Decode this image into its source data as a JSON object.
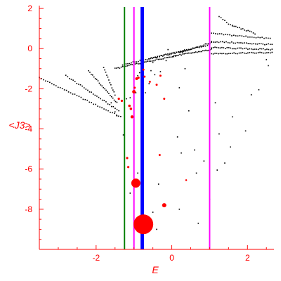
{
  "colors": {
    "axis": "#ff0000",
    "points": "#000000",
    "highlight": "#ff0000",
    "vline_green": "#008000",
    "vline_magenta": "#ff00ff",
    "vline_blue": "#0000ff"
  },
  "chart_data": {
    "type": "scatter",
    "xlabel": "E",
    "ylabel": "<J3>",
    "xlim": [
      -3.5,
      2.7
    ],
    "ylim": [
      -10,
      2
    ],
    "xticks": [
      -2,
      0,
      2
    ],
    "yticks": [
      2,
      0,
      -2,
      -4,
      -6,
      -8
    ],
    "grid": false,
    "vertical_lines": [
      {
        "x": -1.25,
        "color": "#008000",
        "width": 2
      },
      {
        "x": -1.0,
        "color": "#ff00ff",
        "width": 2
      },
      {
        "x": -0.78,
        "color": "#0000ff",
        "width": 5
      },
      {
        "x": 1.0,
        "color": "#ff00ff",
        "width": 2
      }
    ],
    "bands": [
      {
        "x0": -3.5,
        "y0": -1.45,
        "x1": -1.35,
        "y1": -3.4,
        "n": 40
      },
      {
        "x0": -2.8,
        "y0": -1.35,
        "x1": -1.4,
        "y1": -3.1,
        "n": 30
      },
      {
        "x0": -2.2,
        "y0": -1.1,
        "x1": -1.45,
        "y1": -2.7,
        "n": 22
      },
      {
        "x0": -1.8,
        "y0": -0.95,
        "x1": -1.5,
        "y1": -2.3,
        "n": 12
      },
      {
        "x0": -1.5,
        "y0": -1.0,
        "x1": 0.1,
        "y1": -0.35,
        "n": 40
      },
      {
        "x0": -1.3,
        "y0": -0.8,
        "x1": 0.5,
        "y1": -0.05,
        "n": 40
      },
      {
        "x0": -0.6,
        "y0": -0.5,
        "x1": 1.0,
        "y1": 0.2,
        "n": 30
      },
      {
        "x0": 0.1,
        "y0": -0.35,
        "x1": 1.05,
        "y1": -0.05,
        "n": 26
      },
      {
        "x0": 0.2,
        "y0": -0.2,
        "x1": 1.05,
        "y1": 0.3,
        "n": 22
      },
      {
        "x0": 1.05,
        "y0": -0.25,
        "x1": 2.65,
        "y1": -0.2,
        "n": 36
      },
      {
        "x0": 1.05,
        "y0": 0.05,
        "x1": 2.65,
        "y1": -0.05,
        "n": 36
      },
      {
        "x0": 1.05,
        "y0": 0.35,
        "x1": 2.65,
        "y1": 0.2,
        "n": 34
      },
      {
        "x0": 1.05,
        "y0": 0.75,
        "x1": 2.6,
        "y1": 0.5,
        "n": 30
      },
      {
        "x0": 1.25,
        "y0": 1.6,
        "x1": 1.6,
        "y1": 1.1,
        "n": 8
      },
      {
        "x0": 1.6,
        "y0": 1.15,
        "x1": 2.2,
        "y1": 0.75,
        "n": 14
      }
    ],
    "points": [
      [
        -1.6,
        -2.7
      ],
      [
        -1.5,
        -3.15
      ],
      [
        -1.45,
        -3.35
      ],
      [
        -1.25,
        -2.95
      ],
      [
        -1.2,
        -2.5
      ],
      [
        -1.1,
        -2.45
      ],
      [
        -1.0,
        -1.55
      ],
      [
        -0.95,
        -2.2
      ],
      [
        -0.85,
        -1.2
      ],
      [
        -0.9,
        -1.35
      ],
      [
        -0.7,
        -2.2
      ],
      [
        -0.6,
        -1.75
      ],
      [
        -0.55,
        -1.1
      ],
      [
        -0.5,
        -0.7
      ],
      [
        -0.45,
        -1.3
      ],
      [
        -0.4,
        -0.45
      ],
      [
        -0.3,
        -1.15
      ],
      [
        -0.15,
        -0.6
      ],
      [
        -0.1,
        -0.05
      ],
      [
        0.05,
        -0.4
      ],
      [
        0.2,
        -1.95
      ],
      [
        0.35,
        -1.0
      ],
      [
        -0.8,
        -1.8
      ],
      [
        1.15,
        -2.7
      ],
      [
        1.6,
        -3.4
      ],
      [
        1.25,
        -4.25
      ],
      [
        1.95,
        -4.1
      ],
      [
        0.25,
        -5.2
      ],
      [
        0.6,
        -5.05
      ],
      [
        0.85,
        -5.6
      ],
      [
        0.65,
        -6.2
      ],
      [
        1.4,
        -5.7
      ],
      [
        1.2,
        -6.05
      ],
      [
        1.55,
        -4.9
      ],
      [
        0.15,
        -4.4
      ],
      [
        0.45,
        -3.1
      ],
      [
        2.3,
        -2.05
      ],
      [
        2.55,
        -0.85
      ],
      [
        2.5,
        -0.55
      ],
      [
        2.1,
        -2.3
      ],
      [
        -0.35,
        -6.75
      ],
      [
        -0.2,
        -7.8
      ],
      [
        0.2,
        -8.0
      ],
      [
        0.7,
        -8.7
      ],
      [
        1.0,
        -7.5
      ],
      [
        -1.28,
        -4.3
      ],
      [
        -0.9,
        -6.2
      ],
      [
        -0.5,
        -8.15
      ],
      [
        -0.4,
        -9.0
      ],
      [
        -1.1,
        -7.2
      ]
    ],
    "highlight_points": [
      [
        -1.4,
        -2.5,
        1.6
      ],
      [
        -1.32,
        -2.6,
        1.6
      ],
      [
        -1.12,
        -2.85,
        1.8
      ],
      [
        -1.08,
        -3.0,
        1.8
      ],
      [
        -1.05,
        -3.4,
        2.2
      ],
      [
        -1.0,
        -2.15,
        2.5
      ],
      [
        -0.98,
        -1.95,
        1.5
      ],
      [
        -0.93,
        -1.5,
        2.0
      ],
      [
        -0.88,
        -1.45,
        1.6
      ],
      [
        -0.75,
        -1.05,
        1.5
      ],
      [
        -0.72,
        -1.4,
        1.5
      ],
      [
        -0.58,
        -1.65,
        1.5
      ],
      [
        -0.4,
        -1.8,
        1.5
      ],
      [
        -0.3,
        -1.35,
        1.5
      ],
      [
        -0.2,
        -2.5,
        1.5
      ],
      [
        -1.18,
        -5.45,
        1.6
      ],
      [
        -1.15,
        -5.9,
        1.6
      ],
      [
        -0.32,
        -5.3,
        1.5
      ],
      [
        0.38,
        -6.55,
        1.3
      ],
      [
        -0.95,
        -6.7,
        6.5
      ],
      [
        -0.2,
        -7.8,
        3.0
      ],
      [
        -0.75,
        -8.75,
        14
      ]
    ]
  }
}
